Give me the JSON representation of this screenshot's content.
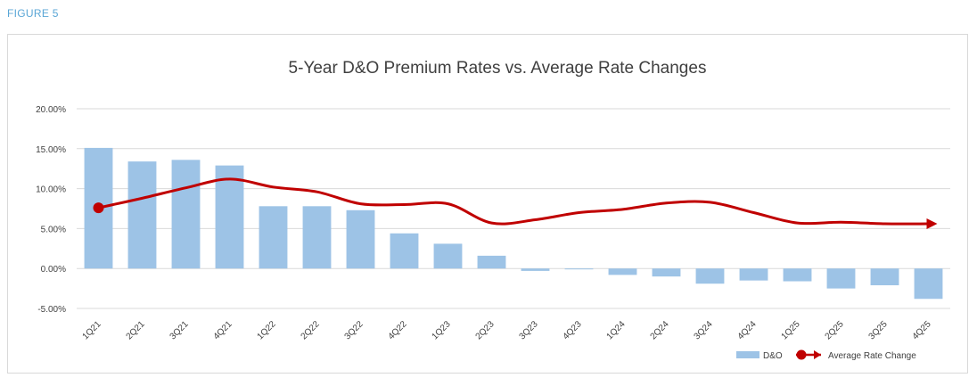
{
  "figure_label": "FIGURE 5",
  "chart_data": {
    "type": "bar",
    "title": "5-Year D&O Premium Rates vs. Average Rate Changes",
    "categories": [
      "1Q21",
      "2Q21",
      "3Q21",
      "4Q21",
      "1Q22",
      "2Q22",
      "3Q22",
      "4Q22",
      "1Q23",
      "2Q23",
      "3Q23",
      "4Q23",
      "1Q24",
      "2Q24",
      "3Q24",
      "4Q24",
      "1Q25",
      "2Q25",
      "3Q25",
      "4Q25"
    ],
    "series": [
      {
        "name": "D&O",
        "kind": "bar",
        "color": "#9dc3e6",
        "values": [
          15.1,
          13.4,
          13.6,
          12.9,
          7.8,
          7.8,
          7.3,
          4.4,
          3.1,
          1.6,
          -0.3,
          -0.1,
          -0.8,
          -1.0,
          -1.9,
          -1.5,
          -1.6,
          -2.5,
          -2.1,
          -3.8
        ]
      },
      {
        "name": "Average Rate Change",
        "kind": "line",
        "color": "#c00000",
        "values": [
          7.6,
          8.8,
          10.1,
          11.2,
          10.2,
          9.6,
          8.1,
          8.0,
          8.1,
          5.7,
          6.1,
          7.0,
          7.4,
          8.2,
          8.3,
          7.0,
          5.7,
          5.8,
          5.6,
          5.6
        ]
      }
    ],
    "yticks": [
      "20.00%",
      "15.00%",
      "10.00%",
      "5.00%",
      "0.00%",
      "-5.00%"
    ],
    "ytick_values": [
      20,
      15,
      10,
      5,
      0,
      -5
    ],
    "ylim": [
      -5,
      20
    ],
    "grid": true,
    "legend": {
      "position": "bottom-right",
      "entries": [
        "D&O",
        "Average Rate Change"
      ]
    }
  }
}
